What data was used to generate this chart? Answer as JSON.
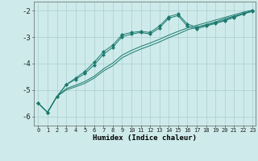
{
  "xlabel": "Humidex (Indice chaleur)",
  "bg_color": "#ceeaea",
  "line_color": "#1a7a6e",
  "grid_color": "#aacfcf",
  "xlim": [
    -0.5,
    23.3
  ],
  "ylim": [
    -6.35,
    -1.65
  ],
  "xticks": [
    0,
    1,
    2,
    3,
    4,
    5,
    6,
    7,
    8,
    9,
    10,
    11,
    12,
    13,
    14,
    15,
    16,
    17,
    18,
    19,
    20,
    21,
    22,
    23
  ],
  "yticks": [
    -6,
    -5,
    -4,
    -3,
    -2
  ],
  "line1_x": [
    0,
    1,
    2,
    3,
    4,
    5,
    6,
    7,
    8,
    9,
    10,
    11,
    12,
    13,
    14,
    15,
    16,
    17,
    18,
    19,
    20,
    21,
    22,
    23
  ],
  "line1_y": [
    -5.5,
    -5.85,
    -5.25,
    -4.8,
    -4.55,
    -4.3,
    -3.95,
    -3.55,
    -3.3,
    -2.9,
    -2.82,
    -2.78,
    -2.82,
    -2.58,
    -2.22,
    -2.12,
    -2.5,
    -2.62,
    -2.55,
    -2.45,
    -2.35,
    -2.22,
    -2.1,
    -2.0
  ],
  "line2_x": [
    0,
    1,
    2,
    3,
    4,
    5,
    6,
    7,
    8,
    9,
    10,
    11,
    12,
    13,
    14,
    15,
    16,
    17,
    18,
    19,
    20,
    21,
    22,
    23
  ],
  "line2_y": [
    -5.5,
    -5.85,
    -5.25,
    -5.0,
    -4.88,
    -4.75,
    -4.55,
    -4.28,
    -4.08,
    -3.78,
    -3.6,
    -3.45,
    -3.32,
    -3.18,
    -3.02,
    -2.88,
    -2.72,
    -2.62,
    -2.52,
    -2.42,
    -2.3,
    -2.2,
    -2.1,
    -2.0
  ],
  "line3_x": [
    0,
    1,
    2,
    3,
    4,
    5,
    6,
    7,
    8,
    9,
    10,
    11,
    12,
    13,
    14,
    15,
    16,
    17,
    18,
    19,
    20,
    21,
    22,
    23
  ],
  "line3_y": [
    -5.5,
    -5.85,
    -5.25,
    -4.95,
    -4.82,
    -4.68,
    -4.48,
    -4.2,
    -3.98,
    -3.68,
    -3.5,
    -3.35,
    -3.22,
    -3.08,
    -2.92,
    -2.78,
    -2.65,
    -2.55,
    -2.45,
    -2.35,
    -2.25,
    -2.15,
    -2.05,
    -1.97
  ],
  "line4_x": [
    0,
    1,
    2,
    3,
    4,
    5,
    6,
    7,
    8,
    9,
    10,
    11,
    12,
    13,
    14,
    15,
    16,
    17,
    18,
    19,
    20,
    21,
    22,
    23
  ],
  "line4_y": [
    -5.5,
    -5.85,
    -5.25,
    -4.8,
    -4.6,
    -4.38,
    -4.05,
    -3.65,
    -3.38,
    -2.98,
    -2.88,
    -2.82,
    -2.88,
    -2.65,
    -2.28,
    -2.18,
    -2.58,
    -2.68,
    -2.58,
    -2.48,
    -2.38,
    -2.25,
    -2.12,
    -2.02
  ]
}
